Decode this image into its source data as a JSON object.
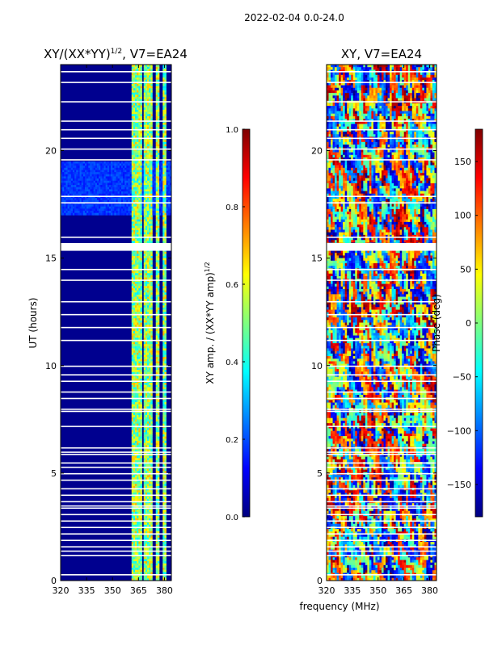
{
  "figure_title": "2022-02-04 0.0-24.0",
  "colors": {
    "jet_stops": [
      "#00007f",
      "#0000ff",
      "#007fff",
      "#00ffff",
      "#7fff7f",
      "#ffff00",
      "#ff7f00",
      "#ff0000",
      "#7f0000"
    ],
    "gap": "#ffffff"
  },
  "chart_data": [
    {
      "type": "heatmap",
      "title_main": "XY/(XX*YY)",
      "title_sup": "1/2",
      "title_tail": ", V7=EA24",
      "xlabel": "",
      "ylabel": "UT (hours)",
      "xlim": [
        320,
        384
      ],
      "ylim": [
        0,
        24
      ],
      "xticks": [
        320,
        335,
        350,
        365,
        380
      ],
      "yticks": [
        0,
        5,
        10,
        15,
        20
      ],
      "z_range": [
        0.0,
        1.0
      ],
      "colorbar": {
        "label": "XY amp. / (XX*YY amp)",
        "label_sup": "1/2",
        "ticks": [
          "0.0",
          "0.2",
          "0.4",
          "0.6",
          "0.8",
          "1.0"
        ]
      },
      "bright_bands_mhz": [
        [
          361,
          367
        ],
        [
          368,
          373
        ],
        [
          375,
          377
        ],
        [
          379,
          381
        ]
      ],
      "moderate_band_hours": [
        [
          17,
          19.5
        ]
      ]
    },
    {
      "type": "heatmap",
      "title": "XY, V7=EA24",
      "xlabel": "frequency (MHz)",
      "ylabel": "",
      "xlim": [
        320,
        384
      ],
      "ylim": [
        0,
        24
      ],
      "xticks": [
        320,
        335,
        350,
        365,
        380
      ],
      "yticks": [
        0,
        5,
        10,
        15,
        20
      ],
      "z_range": [
        -180,
        180
      ],
      "colorbar": {
        "label": "Phase (deg)",
        "ticks": [
          "150",
          "100",
          "50",
          "0",
          "−50",
          "−100",
          "−150"
        ],
        "tick_values": [
          150,
          100,
          50,
          0,
          -50,
          -100,
          -150
        ]
      }
    }
  ]
}
